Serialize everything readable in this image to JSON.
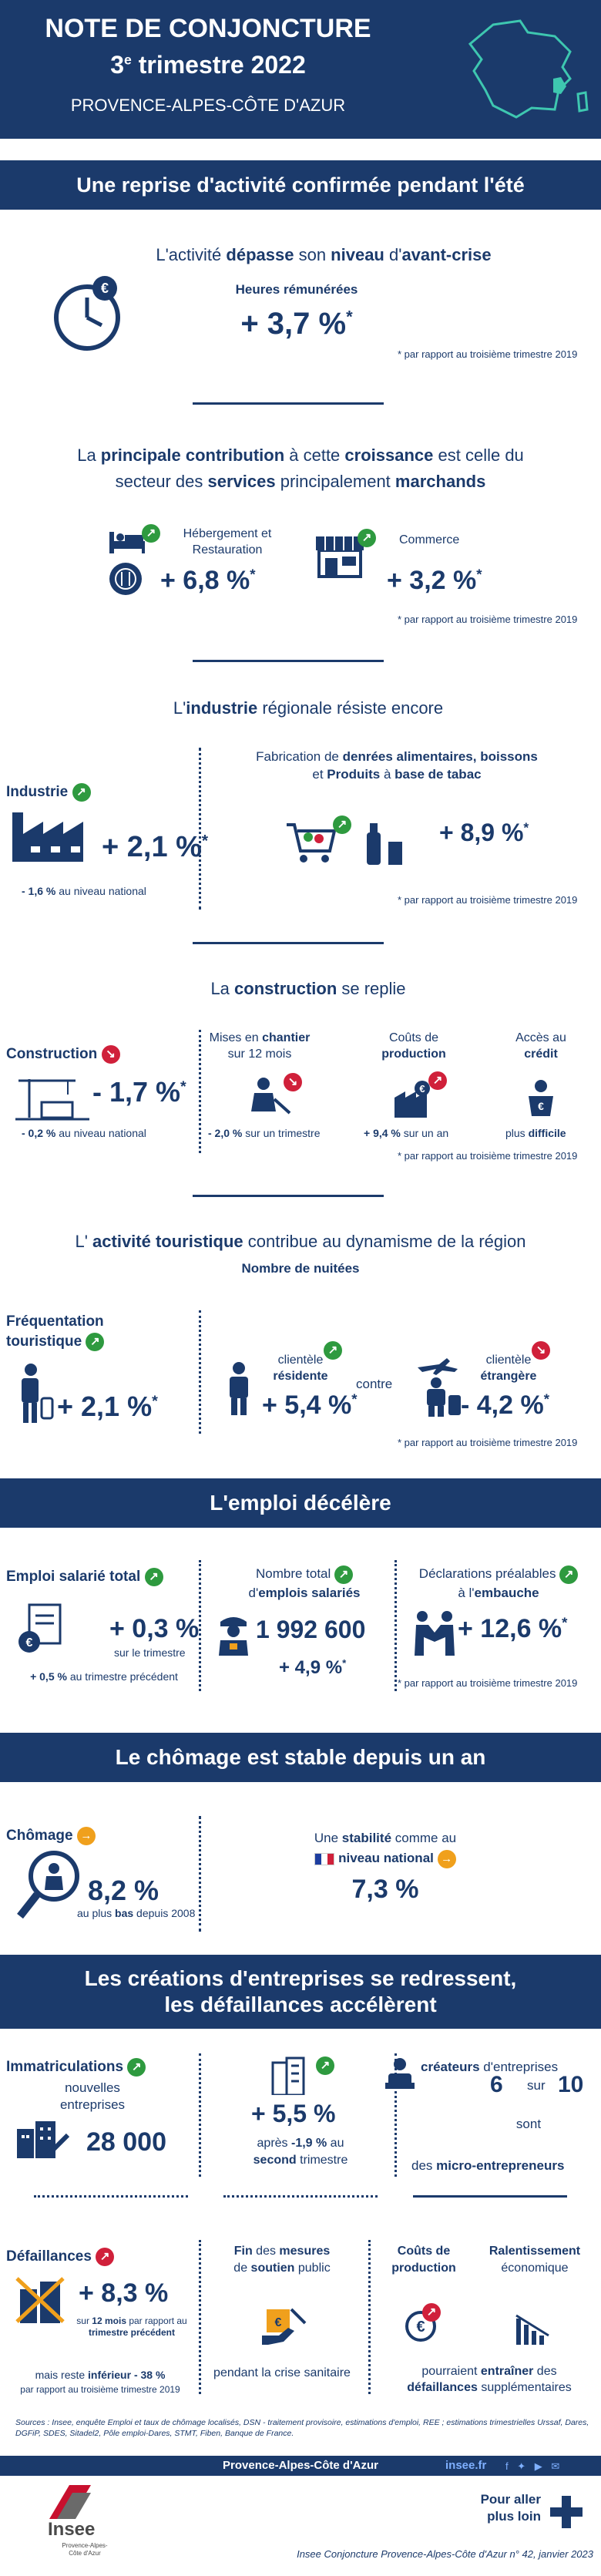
{
  "header": {
    "title": "NOTE DE CONJONCTURE",
    "quarter_num": "3",
    "quarter_sup": "e",
    "quarter_rest": " trimestre 2022",
    "region": "PROVENCE-ALPES-CÔTE D'AZUR"
  },
  "sec1": {
    "banner": "Une reprise d'activité confirmée pendant l'été",
    "lead_a": "L'activité ",
    "lead_b": "dépasse",
    "lead_c": " son ",
    "lead_d": "niveau",
    "lead_e": " d'",
    "lead_f": "avant-crise",
    "hours_label": "Heures rémunérées",
    "hours_value": "+ 3,7 %",
    "star": "*",
    "footnote": "* par rapport au troisième trimestre 2019"
  },
  "sec2": {
    "lead_1": "La ",
    "lead_2": "principale contribution",
    "lead_3": " à cette ",
    "lead_4": "croissance",
    "lead_5": " est celle du",
    "lead_6": "secteur des ",
    "lead_7": "services",
    "lead_8": " principalement ",
    "lead_9": "marchands",
    "hebergement_label": "Hébergement et Restauration",
    "hebergement_value": "+ 6,8 %",
    "commerce_label": "Commerce",
    "commerce_value": "+ 3,2 %",
    "footnote": "* par rapport au troisième trimestre 2019"
  },
  "sec3": {
    "lead_1": "L'",
    "lead_2": "industrie",
    "lead_3": " régionale résiste encore",
    "industrie_label": "Industrie",
    "industrie_value": "+ 2,1 %",
    "national_value": "- 1,6 %",
    "national_text": " au niveau national",
    "fab_1": "Fabrication de ",
    "fab_2": "denrées alimentaires, boissons",
    "fab_3": "et ",
    "fab_4": "Produits",
    "fab_5": " à ",
    "fab_6": "base de tabac",
    "fab_value": "+ 8,9 %",
    "footnote": "* par rapport au troisième trimestre 2019"
  },
  "sec4": {
    "lead_1": "La ",
    "lead_2": "construction",
    "lead_3": " se replie",
    "construction_label": "Construction",
    "construction_value": "- 1,7 %",
    "national_value": "- 0,2 %",
    "national_text": " au niveau national",
    "mises_1": "Mises en ",
    "mises_2": "chantier",
    "mises_3": "sur 12 mois",
    "mises_value": "- 2,0 %",
    "mises_text": " sur un trimestre",
    "couts_1": "Coûts de",
    "couts_2": "production",
    "couts_value": "+ 9,4 %",
    "couts_text": " sur un an",
    "acces_1": "Accès au",
    "acces_2": "crédit",
    "acces_3": "plus ",
    "acces_4": "difficile",
    "footnote": "* par rapport au troisième trimestre 2019"
  },
  "sec5": {
    "lead_1": "L' ",
    "lead_2": "activité touristique",
    "lead_3": " contribue au dynamisme de la région",
    "nuitees": "Nombre de nuitées",
    "freq_label": "Fréquentation touristique",
    "freq_value": "+ 2,1 %",
    "resid_1": "clientèle",
    "resid_2": "résidente",
    "resid_value": "+ 5,4 %",
    "contre": "contre",
    "etr_1": "clientèle",
    "etr_2": "étrangère",
    "etr_value": "- 4,2 %",
    "footnote": "* par rapport au troisième trimestre 2019"
  },
  "sec6": {
    "banner": "L'emploi décélère",
    "emploi_label": "Emploi salarié total",
    "emploi_value": "+ 0,3 %",
    "emploi_sub": "sur le trimestre",
    "emploi_nat_value": "+ 0,5 %",
    "emploi_nat_text": " au trimestre précédent",
    "total_1": "Nombre total",
    "total_2": "d'",
    "total_3": "emplois salariés",
    "total_value": "1 992 600",
    "total_change": "+ 4,9 %",
    "decl_1": "Déclarations préalables",
    "decl_2": "à l'",
    "decl_3": "embauche",
    "decl_value": "+ 12,6 %",
    "footnote": "* par rapport au troisième trimestre 2019"
  },
  "sec7": {
    "banner": "Le chômage est stable depuis un an",
    "chomage_label": "Chômage",
    "chomage_value": "8,2 %",
    "chomage_sub_1": "au plus ",
    "chomage_sub_2": "bas",
    "chomage_sub_3": " depuis 2008",
    "stab_1": "Une ",
    "stab_2": "stabilité",
    "stab_3": " comme au",
    "stab_4": "niveau national",
    "stab_value": "7,3 %"
  },
  "sec8": {
    "banner_1": "Les créations d'entreprises se redressent,",
    "banner_2": "les défaillances accélèrent",
    "immat_label": "Immatriculations",
    "immat_sub_1": "nouvelles",
    "immat_sub_2": "entreprises",
    "immat_value": "28 000",
    "immat_change": "+ 5,5 %",
    "immat_after_1": "après ",
    "immat_after_2": "-1,9 %",
    "immat_after_3": " au",
    "immat_after_4": "second",
    "immat_after_5": " trimestre",
    "crea_1": "créateurs",
    "crea_2": " d'entreprises",
    "crea_6": "6",
    "crea_sur": "sur",
    "crea_10": "10",
    "crea_sont": "sont",
    "crea_3": "des ",
    "crea_4": "micro-entrepreneurs",
    "def_label": "Défaillances",
    "def_value": "+ 8,3 %",
    "def_sub_1": "sur ",
    "def_sub_2": "12 mois",
    "def_sub_3": " par rapport au",
    "def_sub_4": "trimestre précédent",
    "def_sub_5": "par rapport au troisième trimestre 2019",
    "def_inf_1": "mais reste ",
    "def_inf_2": "inférieur",
    "def_inf_3": " - 38 %",
    "fin_1": "Fin",
    "fin_2": " des ",
    "fin_3": "mesures",
    "fin_4": "de ",
    "fin_5": "soutien",
    "fin_6": " public",
    "fin_7": "pendant la crise sanitaire",
    "couts_1": "Coûts de",
    "couts_2": "production",
    "ralent_1": "Ralentissement",
    "ralent_2": "économique",
    "pour_1": "pourraient ",
    "pour_2": "entraîner",
    "pour_3": " des",
    "pour_4": "défaillances",
    "pour_5": " supplémentaires"
  },
  "footer": {
    "sources": "Sources : Insee, enquête Emploi et taux de chômage localisés, DSN - traitement provisoire, estimations d'emploi, REE ; estimations trimestrielles Urssaf, Dares, DGFiP, SDES, Sitadel2, Pôle emploi-Dares, STMT, Fiben, Banque de France.",
    "region": "Provence-Alpes-Côte d'Azur",
    "site": "insee.fr",
    "logo": "Insee",
    "logo_sub": "Provence-Alpes-Côte d'Azur",
    "pour_aller_1": "Pour aller",
    "pour_aller_2": "plus loin",
    "ref": "Insee Conjoncture Provence-Alpes-Côte d'Azur n° 42, janvier 2023"
  },
  "colors": {
    "navy": "#1b3a6b",
    "up": "#2e9a3f",
    "down": "#d0203a",
    "flat": "#f0a01c"
  },
  "icons": [
    "clock-euro-icon",
    "bed-icon",
    "fork-plate-icon",
    "shop-icon",
    "factory-icon",
    "shopping-cart-icon",
    "bottle-icon",
    "crane-icon",
    "worker-icon",
    "factory-euro-icon",
    "person-euro-icon",
    "tourist-icon",
    "traveler-icon",
    "employees-icon",
    "worker-badge-icon",
    "handshake-icon",
    "magnifier-person-icon",
    "flag-france-icon",
    "buildings-icon",
    "entrepreneur-icon",
    "broken-building-icon",
    "euro-hand-icon",
    "declining-chart-icon",
    "plus-icon"
  ]
}
